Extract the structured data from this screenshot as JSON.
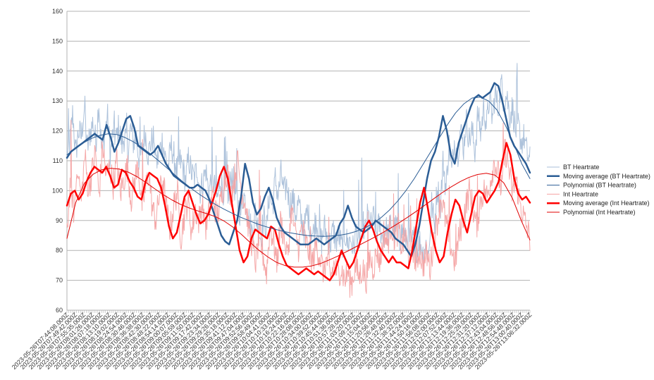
{
  "chart_data": {
    "type": "line",
    "title": "",
    "xlabel": "",
    "ylabel": "",
    "ylim": [
      60,
      160
    ],
    "yticks": [
      60,
      70,
      80,
      90,
      100,
      110,
      120,
      130,
      140,
      150,
      160
    ],
    "grid": true,
    "legend_position": "right",
    "x_tick_labels": [
      "2023-05-26T07:44:08.000Z",
      "2023-05-26T07:49:42.000Z",
      "2023-05-26T07:55:35.000Z",
      "2023-05-26T08:01:26.000Z",
      "2023-05-26T08:07:18.000Z",
      "2023-05-26T08:13:10.000Z",
      "2023-05-26T08:19:02.000Z",
      "2023-05-26T08:24:54.000Z",
      "2023-05-26T08:30:46.000Z",
      "2023-05-26T08:36:38.000Z",
      "2023-05-26T08:42:30.000Z",
      "2023-05-26T08:48:22.000Z",
      "2023-05-26T08:54:14.000Z",
      "2023-05-26T09:00:07.000Z",
      "2023-05-26T09:05:59.000Z",
      "2023-05-26T09:11:50.000Z",
      "2023-05-26T09:17:42.000Z",
      "2023-05-26T09:23:34.000Z",
      "2023-05-26T09:29:26.000Z",
      "2023-05-26T09:35:18.000Z",
      "2023-05-26T09:41:12.000Z",
      "2023-05-26T09:47:04.000Z",
      "2023-05-26T09:52:56.000Z",
      "2023-05-26T09:58:49.000Z",
      "2023-05-26T10:04:41.000Z",
      "2023-05-26T10:10:33.000Z",
      "2023-05-26T10:16:24.000Z",
      "2023-05-26T10:22:16.000Z",
      "2023-05-26T10:28:08.000Z",
      "2023-05-26T10:34:00.000Z",
      "2023-05-26T10:39:52.000Z",
      "2023-05-26T10:45:44.000Z",
      "2023-05-26T10:51:36.000Z",
      "2023-05-26T10:57:28.000Z",
      "2023-05-26T11:03:20.000Z",
      "2023-05-26T11:09:12.000Z",
      "2023-05-26T11:15:04.000Z",
      "2023-05-26T11:20:56.000Z",
      "2023-05-26T11:26:48.000Z",
      "2023-05-26T11:32:40.000Z",
      "2023-05-26T11:38:32.000Z",
      "2023-05-26T11:44:24.000Z",
      "2023-05-26T11:50:16.000Z",
      "2023-05-26T11:56:08.000Z",
      "2023-05-26T12:02:00.000Z",
      "2023-05-26T12:07:52.000Z",
      "2023-05-26T12:13:44.000Z",
      "2023-05-26T12:19:36.000Z",
      "2023-05-26T12:25:28.000Z",
      "2023-05-26T12:31:20.000Z",
      "2023-05-26T12:37:12.000Z",
      "2023-05-26T12:43:04.000Z",
      "2023-05-26T12:48:56.000Z",
      "2023-05-26T12:54:48.000Z",
      "2023-05-26T13:00:40.000Z",
      "2023-05-26T13:06:32.000Z"
    ],
    "series": [
      {
        "name": "BT Heartrate",
        "color": "#a9bfd9",
        "width": 1,
        "noisy": true,
        "values": [
          112,
          116,
          126,
          112,
          120,
          118,
          128,
          114,
          119,
          123,
          116,
          130,
          113,
          118,
          125,
          112,
          120,
          117,
          122,
          115,
          119,
          113,
          121,
          116,
          118,
          110,
          114,
          120,
          112,
          116,
          118,
          109,
          113,
          117,
          111,
          108,
          115,
          112,
          106,
          110,
          108,
          103,
          111,
          106,
          104,
          108,
          100,
          103,
          107,
          99,
          105,
          101,
          97,
          104,
          100,
          102,
          98,
          106,
          101,
          96,
          92,
          99,
          95,
          90,
          86,
          93,
          88,
          84,
          91,
          87,
          100,
          94,
          104,
          98,
          106,
          99,
          102,
          95,
          98,
          92,
          96,
          90,
          87,
          93,
          89,
          85,
          91,
          86,
          83,
          88,
          84,
          82,
          87,
          83,
          85,
          81,
          86,
          82,
          84,
          80,
          87,
          83,
          90,
          86,
          92,
          88,
          91,
          86,
          89,
          84,
          88,
          85,
          90,
          86,
          89,
          84,
          87,
          83,
          85,
          82,
          84,
          80,
          83,
          79,
          82,
          78,
          96,
          88,
          102,
          94,
          110,
          100,
          116,
          106,
          118,
          112,
          121,
          114,
          124,
          117,
          120,
          113,
          126,
          119,
          128,
          122,
          131,
          124,
          133,
          127,
          136,
          130,
          132,
          125,
          128,
          120,
          122,
          116,
          118,
          112,
          110
        ]
      },
      {
        "name": "Moving average (BT Heartrate)",
        "color": "#2b5d95",
        "width": 2.5,
        "noisy": false,
        "values": [
          111,
          113,
          114,
          115,
          116,
          117,
          118,
          119,
          118,
          117,
          122,
          118,
          113,
          116,
          120,
          124,
          125,
          121,
          115,
          114,
          113,
          112,
          113,
          115,
          112,
          109,
          107,
          105,
          104,
          103,
          102,
          101,
          101,
          102,
          101,
          100,
          97,
          93,
          89,
          85,
          83,
          82,
          86,
          90,
          98,
          109,
          104,
          96,
          92,
          94,
          98,
          101,
          97,
          91,
          88,
          86,
          85,
          84,
          83,
          82,
          82,
          82,
          83,
          84,
          83,
          82,
          83,
          84,
          85,
          89,
          91,
          95,
          91,
          88,
          87,
          86,
          87,
          88,
          90,
          89,
          88,
          87,
          86,
          84,
          83,
          82,
          80,
          78,
          82,
          88,
          96,
          104,
          110,
          113,
          118,
          125,
          120,
          112,
          109,
          116,
          120,
          124,
          128,
          131,
          132,
          131,
          132,
          133,
          136,
          135,
          130,
          124,
          118,
          115,
          113,
          111,
          109,
          106
        ]
      },
      {
        "name": "Polynomial (BT Heartrate)",
        "color": "#2b5d95",
        "width": 1,
        "noisy": false,
        "values": [
          112,
          114,
          116,
          117.5,
          118.5,
          119,
          118.8,
          117.8,
          116.4,
          114.6,
          112.5,
          110.2,
          107.8,
          105.4,
          103,
          100.8,
          98.8,
          97,
          95.3,
          93.8,
          92.4,
          91.1,
          90,
          88.9,
          88,
          87.2,
          86.5,
          85.9,
          85.4,
          85,
          84.8,
          84.7,
          84.8,
          85.1,
          85.6,
          86.4,
          87.5,
          89,
          91,
          93.5,
          96.5,
          100,
          104,
          108.5,
          113,
          117.5,
          122,
          126,
          129,
          131,
          131.3,
          130,
          127,
          122,
          116,
          109,
          104
        ]
      },
      {
        "name": "Int Heartrate",
        "color": "#f4a3a3",
        "width": 1,
        "noisy": true,
        "values": [
          86,
          104,
          92,
          110,
          96,
          112,
          100,
          106,
          113,
          98,
          115,
          105,
          108,
          102,
          110,
          99,
          104,
          108,
          97,
          103,
          109,
          95,
          100,
          106,
          94,
          90,
          99,
          104,
          93,
          87,
          95,
          100,
          84,
          92,
          97,
          86,
          94,
          90,
          96,
          88,
          93,
          99,
          91,
          95,
          102,
          107,
          98,
          104,
          110,
          100,
          96,
          88,
          82,
          76,
          85,
          79,
          72,
          88,
          83,
          76,
          90,
          84,
          78,
          94,
          86,
          81,
          88,
          83,
          79,
          76,
          82,
          78,
          73,
          77,
          71,
          75,
          72,
          74,
          70,
          73,
          69,
          75,
          71,
          74,
          70,
          78,
          74,
          80,
          76,
          86,
          82,
          89,
          84,
          87,
          81,
          85,
          78,
          82,
          76,
          80,
          75,
          79,
          74,
          84,
          90,
          98,
          92,
          86,
          80,
          76,
          84,
          90,
          95,
          100,
          94,
          88,
          96,
          100,
          98,
          104,
          110,
          106,
          100,
          114,
          108,
          99,
          104,
          97,
          92,
          88,
          84
        ]
      },
      {
        "name": "Moving average (Int Heartrate)",
        "color": "#ff0000",
        "width": 2.5,
        "noisy": false,
        "values": [
          95,
          99,
          100,
          97,
          99,
          103,
          106,
          108,
          107,
          106,
          108,
          105,
          101,
          102,
          107,
          106,
          103,
          101,
          98,
          97,
          103,
          106,
          105,
          104,
          101,
          95,
          88,
          84,
          86,
          92,
          98,
          100,
          96,
          92,
          89,
          90,
          92,
          96,
          100,
          105,
          108,
          104,
          96,
          88,
          80,
          76,
          78,
          84,
          87,
          86,
          85,
          84,
          88,
          87,
          82,
          78,
          75,
          74,
          73,
          72,
          73,
          74,
          73,
          72,
          73,
          72,
          71,
          70,
          72,
          76,
          80,
          77,
          74,
          76,
          80,
          84,
          88,
          90,
          87,
          83,
          80,
          78,
          76,
          78,
          76,
          76,
          75,
          74,
          80,
          88,
          96,
          101,
          94,
          86,
          80,
          76,
          78,
          86,
          92,
          97,
          95,
          90,
          86,
          92,
          98,
          100,
          99,
          96,
          98,
          100,
          103,
          110,
          116,
          112,
          104,
          99,
          97,
          98,
          96
        ]
      },
      {
        "name": "Polynomial (Int Heartrate)",
        "color": "#e00000",
        "width": 1,
        "noisy": false,
        "values": [
          84,
          96,
          102.5,
          105.5,
          107,
          107.5,
          107.2,
          106.2,
          104.7,
          102.8,
          100.7,
          98.7,
          96.9,
          95.4,
          94.2,
          93.2,
          92.3,
          91.3,
          89.8,
          87.8,
          85.3,
          82.6,
          80,
          77.8,
          76,
          74.9,
          74.4,
          74.4,
          74.8,
          75.6,
          76.8,
          78.1,
          79.6,
          81.1,
          82.6,
          84.1,
          85.7,
          87.4,
          89.2,
          91.1,
          93.1,
          95.2,
          97.3,
          99.4,
          101.3,
          103,
          104.4,
          105.4,
          105.8,
          105.2,
          102.6,
          97.4,
          90,
          83.5
        ]
      }
    ]
  }
}
